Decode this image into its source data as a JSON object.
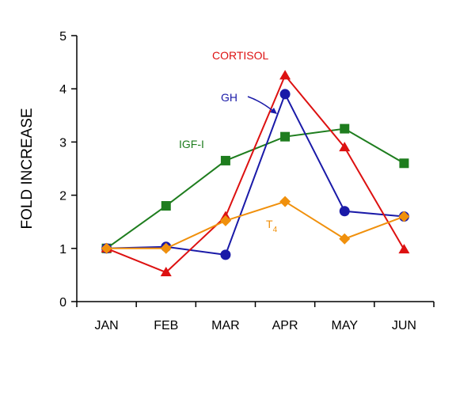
{
  "chart_data": {
    "type": "line",
    "title": "",
    "xlabel": "",
    "ylabel": "FOLD INCREASE",
    "categories": [
      "JAN",
      "FEB",
      "MAR",
      "APR",
      "MAY",
      "JUN"
    ],
    "ylim": [
      0,
      5
    ],
    "yticks": [
      "0",
      "1",
      "2",
      "3",
      "4",
      "5"
    ],
    "grid": false,
    "legend": "none",
    "series": [
      {
        "name": "IGF-I",
        "color": "#1e7d1e",
        "marker": "square",
        "values": [
          1.0,
          1.8,
          2.65,
          3.1,
          3.25,
          2.6
        ]
      },
      {
        "name": "GH",
        "color": "#1a1aa8",
        "marker": "circle",
        "values": [
          1.0,
          1.03,
          0.88,
          3.9,
          1.7,
          1.6
        ]
      },
      {
        "name": "CORTISOL",
        "color": "#dd1111",
        "marker": "triangle",
        "values": [
          1.0,
          0.55,
          1.6,
          4.25,
          2.9,
          0.98
        ]
      },
      {
        "name": "T",
        "name_subscript": "4",
        "color": "#f0900c",
        "marker": "diamond",
        "values": [
          1.0,
          1.0,
          1.52,
          1.88,
          1.18,
          1.6
        ]
      }
    ],
    "annotations": [
      {
        "series": "CORTISOL",
        "text": "CORTISOL"
      },
      {
        "series": "GH",
        "text": "GH"
      },
      {
        "series": "IGF-I",
        "text": "IGF-I"
      },
      {
        "series": "T4",
        "text": "T",
        "subscript": "4"
      }
    ]
  }
}
